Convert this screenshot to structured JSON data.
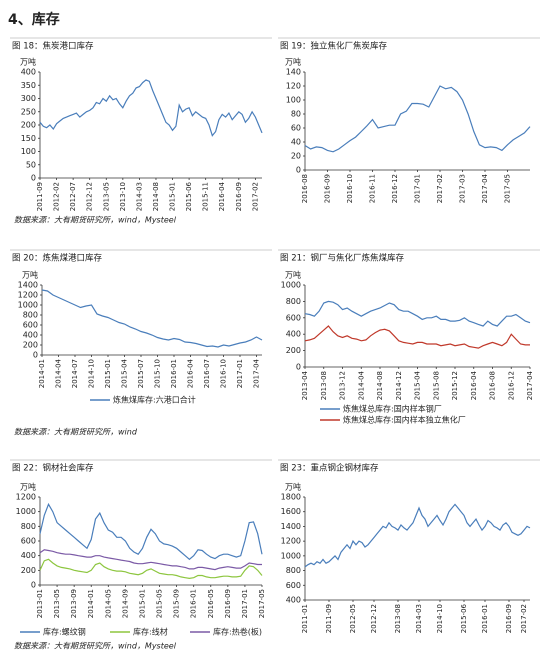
{
  "section_title": "4、库存",
  "chart_data": [
    {
      "type": "line",
      "title": "图 18：焦炭港口库存",
      "unit": "万吨",
      "color": "#4a7ebb",
      "source": "数据来源：大有期货研究所，wind，Mysteel",
      "categories": [
        "2011-09",
        null,
        null,
        null,
        null,
        "2012-02",
        null,
        null,
        null,
        null,
        "2012-07",
        null,
        null,
        null,
        null,
        "2012-12",
        null,
        null,
        null,
        null,
        "2013-05",
        null,
        null,
        null,
        null,
        "2013-10",
        null,
        null,
        null,
        null,
        "2014-03",
        null,
        null,
        null,
        null,
        "2014-08",
        null,
        null,
        null,
        null,
        "2015-01",
        null,
        null,
        null,
        null,
        "2015-06",
        null,
        null,
        null,
        null,
        "2015-11",
        null,
        null,
        null,
        null,
        "2016-04",
        null,
        null,
        null,
        null,
        "2016-09",
        null,
        null,
        null,
        null,
        "2017-02",
        null,
        null
      ],
      "values": [
        210,
        195,
        190,
        200,
        185,
        205,
        215,
        225,
        230,
        235,
        240,
        245,
        230,
        240,
        250,
        255,
        265,
        285,
        280,
        300,
        290,
        310,
        295,
        300,
        280,
        265,
        290,
        310,
        320,
        340,
        345,
        360,
        370,
        365,
        330,
        300,
        270,
        240,
        210,
        200,
        180,
        195,
        275,
        250,
        260,
        265,
        235,
        250,
        240,
        230,
        225,
        200,
        160,
        175,
        220,
        240,
        230,
        245,
        220,
        235,
        250,
        240,
        210,
        225,
        250,
        230,
        200,
        170
      ],
      "ylim": [
        0,
        400
      ],
      "yticks": [
        0,
        50,
        100,
        150,
        200,
        250,
        300,
        350,
        400
      ]
    },
    {
      "type": "line",
      "title": "图 19：独立焦化厂焦炭库存",
      "unit": "万吨",
      "color": "#4a7ebb",
      "categories": [
        "2016-08",
        null,
        null,
        null,
        "2016-09",
        null,
        null,
        null,
        "2016-10",
        null,
        null,
        null,
        "2016-11",
        null,
        null,
        null,
        "2016-12",
        null,
        null,
        null,
        "2017-01",
        null,
        null,
        null,
        "2017-02",
        null,
        null,
        null,
        "2017-03",
        null,
        null,
        null,
        "2017-04",
        null,
        null,
        null,
        "2017-05",
        null,
        null,
        null,
        null
      ],
      "values": [
        35,
        30,
        33,
        32,
        28,
        26,
        30,
        36,
        42,
        47,
        55,
        63,
        72,
        60,
        62,
        64,
        64,
        80,
        84,
        95,
        95,
        94,
        90,
        105,
        120,
        116,
        118,
        112,
        100,
        80,
        55,
        36,
        32,
        33,
        32,
        28,
        36,
        43,
        48,
        53,
        62
      ],
      "ylim": [
        0,
        140
      ],
      "yticks": [
        0,
        20,
        40,
        60,
        80,
        100,
        120,
        140
      ]
    },
    {
      "type": "line",
      "title": "图 20：炼焦煤港口库存",
      "unit": "万吨",
      "source": "数据来源：大有期货研究所，wind",
      "categories": [
        "2014-01",
        null,
        null,
        "2014-04",
        null,
        null,
        "2014-07",
        null,
        null,
        "2014-10",
        null,
        null,
        "2015-01",
        null,
        null,
        "2015-04",
        null,
        null,
        "2015-07",
        null,
        null,
        "2015-10",
        null,
        null,
        "2016-01",
        null,
        null,
        "2016-04",
        null,
        null,
        "2016-07",
        null,
        null,
        "2016-10",
        null,
        null,
        "2017-01",
        null,
        null,
        "2017-04",
        null
      ],
      "series": [
        {
          "name": "炼焦煤库存:六港口合计",
          "color": "#4a7ebb",
          "values": [
            1300,
            1280,
            1200,
            1150,
            1100,
            1050,
            1000,
            950,
            980,
            1000,
            820,
            780,
            750,
            700,
            650,
            620,
            560,
            520,
            470,
            440,
            400,
            350,
            320,
            300,
            330,
            310,
            260,
            250,
            230,
            200,
            170,
            180,
            160,
            200,
            180,
            210,
            240,
            260,
            300,
            360,
            300
          ]
        }
      ],
      "ylim": [
        0,
        1400
      ],
      "yticks": [
        0,
        200,
        400,
        600,
        800,
        1000,
        1200,
        1400
      ]
    },
    {
      "type": "line",
      "title": "图 21：钢厂与焦化厂炼焦煤库存",
      "unit": "万吨",
      "categories": [
        "2013-04",
        null,
        null,
        null,
        "2013-08",
        null,
        null,
        null,
        "2013-12",
        null,
        null,
        null,
        "2014-04",
        null,
        null,
        null,
        "2014-08",
        null,
        null,
        null,
        "2014-12",
        null,
        null,
        null,
        "2015-04",
        null,
        null,
        null,
        "2015-08",
        null,
        null,
        null,
        "2015-12",
        null,
        null,
        null,
        "2016-04",
        null,
        null,
        null,
        "2016-08",
        null,
        null,
        null,
        "2016-12",
        null,
        null,
        null,
        "2017-04"
      ],
      "series": [
        {
          "name": "炼焦煤总库存:国内样本钢厂",
          "color": "#4a7ebb",
          "values": [
            650,
            640,
            620,
            680,
            780,
            800,
            790,
            760,
            700,
            720,
            680,
            650,
            620,
            650,
            680,
            700,
            720,
            750,
            780,
            760,
            700,
            680,
            680,
            650,
            620,
            580,
            600,
            600,
            620,
            580,
            580,
            560,
            560,
            570,
            600,
            560,
            540,
            520,
            500,
            560,
            520,
            500,
            560,
            620,
            620,
            640,
            600,
            560,
            540
          ]
        },
        {
          "name": "炼焦煤总库存:国内样本独立焦化厂",
          "color": "#c0392b",
          "values": [
            320,
            330,
            350,
            400,
            450,
            500,
            430,
            380,
            360,
            380,
            350,
            340,
            320,
            330,
            380,
            420,
            450,
            460,
            440,
            380,
            320,
            300,
            290,
            280,
            300,
            300,
            280,
            280,
            280,
            260,
            270,
            280,
            260,
            270,
            280,
            250,
            240,
            230,
            260,
            280,
            300,
            280,
            260,
            300,
            400,
            340,
            280,
            270,
            270
          ]
        }
      ],
      "ylim": [
        0,
        1000
      ],
      "yticks": [
        0,
        200,
        400,
        600,
        800,
        1000
      ]
    },
    {
      "type": "line",
      "title": "图 22：钢材社会库存",
      "unit": "万吨",
      "source": "数据来源：大有期货研究所，wind，Mysteel",
      "categories": [
        "2013-01",
        null,
        null,
        null,
        "2013-05",
        null,
        null,
        null,
        "2013-09",
        null,
        null,
        null,
        "2014-01",
        null,
        null,
        null,
        "2014-05",
        null,
        null,
        null,
        "2014-09",
        null,
        null,
        null,
        "2015-01",
        null,
        null,
        null,
        "2015-05",
        null,
        null,
        null,
        "2015-09",
        null,
        null,
        null,
        "2016-01",
        null,
        null,
        null,
        "2016-05",
        null,
        null,
        null,
        "2016-09",
        null,
        null,
        null,
        "2017-01",
        null,
        null,
        null,
        "2017-05"
      ],
      "series": [
        {
          "name": "库存:螺纹钢",
          "color": "#4a7ebb",
          "values": [
            700,
            950,
            1100,
            1000,
            850,
            800,
            750,
            700,
            650,
            600,
            550,
            500,
            620,
            900,
            980,
            850,
            750,
            720,
            650,
            650,
            600,
            500,
            450,
            420,
            500,
            650,
            760,
            700,
            600,
            560,
            550,
            530,
            500,
            450,
            400,
            350,
            400,
            480,
            470,
            420,
            380,
            360,
            400,
            420,
            420,
            400,
            380,
            400,
            600,
            850,
            860,
            700,
            420
          ]
        },
        {
          "name": "库存:线材",
          "color": "#8dc63f",
          "values": [
            200,
            330,
            350,
            300,
            260,
            240,
            230,
            220,
            200,
            190,
            180,
            170,
            200,
            280,
            300,
            250,
            220,
            200,
            190,
            190,
            180,
            160,
            150,
            140,
            160,
            200,
            220,
            190,
            160,
            150,
            140,
            140,
            130,
            110,
            100,
            90,
            100,
            130,
            130,
            110,
            100,
            100,
            110,
            120,
            120,
            110,
            110,
            120,
            200,
            260,
            250,
            200,
            130
          ]
        },
        {
          "name": "库存:热卷(板)",
          "color": "#7b5aa6",
          "values": [
            440,
            480,
            470,
            460,
            440,
            430,
            420,
            420,
            410,
            400,
            390,
            380,
            380,
            400,
            400,
            380,
            370,
            360,
            350,
            340,
            330,
            320,
            300,
            290,
            290,
            300,
            310,
            300,
            290,
            280,
            270,
            260,
            260,
            250,
            240,
            220,
            220,
            240,
            240,
            230,
            220,
            210,
            230,
            240,
            250,
            240,
            230,
            230,
            260,
            300,
            290,
            280,
            280
          ]
        }
      ],
      "ylim": [
        0,
        1200
      ],
      "yticks": [
        0,
        200,
        400,
        600,
        800,
        1000,
        1200
      ]
    },
    {
      "type": "line",
      "title": "图 23：重点钢企钢材库存",
      "unit": "万吨",
      "color": "#4a7ebb",
      "categories": [
        "2011-01",
        null,
        null,
        null,
        null,
        null,
        null,
        null,
        "2011-09",
        null,
        null,
        null,
        null,
        null,
        null,
        null,
        "2012-05",
        null,
        null,
        null,
        null,
        null,
        null,
        "2012-12",
        null,
        null,
        null,
        null,
        null,
        null,
        null,
        "2013-08",
        null,
        null,
        null,
        null,
        null,
        null,
        "2014-03",
        null,
        null,
        null,
        null,
        null,
        null,
        "2014-10",
        null,
        null,
        null,
        null,
        null,
        null,
        null,
        "2015-06",
        null,
        null,
        null,
        null,
        null,
        null,
        "2016-01",
        null,
        null,
        null,
        null,
        null,
        null,
        null,
        "2016-09",
        null,
        null,
        null,
        null,
        "2017-02",
        null,
        null
      ],
      "values": [
        850,
        880,
        900,
        880,
        920,
        900,
        950,
        900,
        920,
        960,
        1000,
        950,
        1050,
        1100,
        1150,
        1100,
        1200,
        1150,
        1200,
        1180,
        1120,
        1150,
        1200,
        1250,
        1300,
        1350,
        1400,
        1380,
        1450,
        1400,
        1380,
        1350,
        1420,
        1380,
        1350,
        1400,
        1450,
        1550,
        1650,
        1550,
        1500,
        1400,
        1450,
        1500,
        1550,
        1480,
        1420,
        1500,
        1600,
        1650,
        1700,
        1650,
        1600,
        1550,
        1450,
        1400,
        1450,
        1500,
        1420,
        1350,
        1400,
        1480,
        1450,
        1400,
        1380,
        1350,
        1420,
        1450,
        1400,
        1320,
        1300,
        1280,
        1300,
        1350,
        1400,
        1380
      ],
      "ylim": [
        400,
        1800
      ],
      "yticks": [
        400,
        600,
        800,
        1000,
        1200,
        1400,
        1600,
        1800
      ]
    }
  ]
}
